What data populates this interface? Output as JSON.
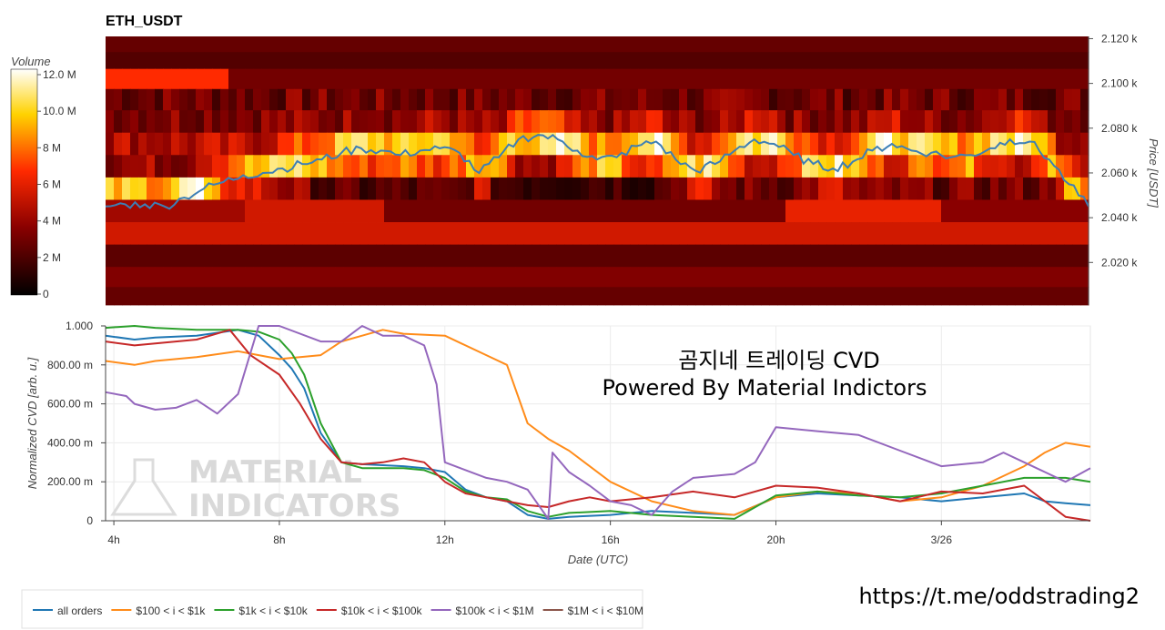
{
  "chart_data": [
    {
      "type": "heatmap",
      "title": "ETH_USDT",
      "colorbar": {
        "label": "Volume",
        "ticks": [
          "12.0 M",
          "10.0 M",
          "8 M",
          "6 M",
          "4 M",
          "2 M",
          "0"
        ],
        "range": [
          0,
          12000000
        ]
      },
      "ylabel": "Price [USDT]",
      "y_ticks": [
        "2.120 k",
        "2.100 k",
        "2.080 k",
        "2.060 k",
        "2.040 k",
        "2.020 k"
      ],
      "ylim": [
        2001,
        2121
      ],
      "price_bands": [
        2117,
        2111,
        2102,
        2093,
        2083,
        2073,
        2063,
        2053,
        2043,
        2033,
        2023,
        2013,
        2005
      ],
      "intensity_bands": [
        {
          "segments": [
            {
              "from": 0,
              "to": 1,
              "level": 0.22
            }
          ]
        },
        {
          "segments": [
            {
              "from": 0,
              "to": 1,
              "level": 0.18
            }
          ]
        },
        {
          "segments": [
            {
              "from": 0,
              "to": 0.125,
              "level": 0.55
            },
            {
              "from": 0.125,
              "to": 1,
              "level": 0.25
            }
          ]
        },
        {
          "segments": [
            {
              "from": 0,
              "to": 1,
              "level": 0.45
            }
          ]
        },
        {
          "segments": [
            {
              "from": 0,
              "to": 1,
              "level": 0.55
            }
          ]
        },
        {
          "segments": [
            {
              "from": 0,
              "to": 1,
              "level": 0.7
            }
          ]
        },
        {
          "segments": [
            {
              "from": 0,
              "to": 1,
              "level": 0.6
            }
          ]
        },
        {
          "segments": [
            {
              "from": 0,
              "to": 0.1,
              "level": 0.9
            },
            {
              "from": 0.1,
              "to": 0.565,
              "level": 0.3
            },
            {
              "from": 0.565,
              "to": 1,
              "level": 0.45
            }
          ]
        },
        {
          "segments": [
            {
              "from": 0,
              "to": 0.145,
              "level": 0.35
            },
            {
              "from": 0.145,
              "to": 0.285,
              "level": 0.45
            },
            {
              "from": 0.285,
              "to": 0.69,
              "level": 0.25
            },
            {
              "from": 0.69,
              "to": 0.85,
              "level": 0.5
            },
            {
              "from": 0.85,
              "to": 1,
              "level": 0.3
            }
          ]
        },
        {
          "segments": [
            {
              "from": 0,
              "to": 1,
              "level": 0.45
            }
          ]
        },
        {
          "segments": [
            {
              "from": 0,
              "to": 1,
              "level": 0.2
            }
          ]
        },
        {
          "segments": [
            {
              "from": 0,
              "to": 1,
              "level": 0.28
            }
          ]
        },
        {
          "segments": [
            {
              "from": 0,
              "to": 1,
              "level": 0.22
            }
          ]
        }
      ],
      "price_line": {
        "color": "#3d7fb5",
        "x": [
          0,
          0.02,
          0.04,
          0.06,
          0.08,
          0.1,
          0.12,
          0.14,
          0.16,
          0.18,
          0.2,
          0.22,
          0.24,
          0.26,
          0.28,
          0.3,
          0.32,
          0.34,
          0.36,
          0.38,
          0.4,
          0.42,
          0.44,
          0.46,
          0.48,
          0.5,
          0.52,
          0.54,
          0.56,
          0.58,
          0.6,
          0.62,
          0.64,
          0.66,
          0.68,
          0.7,
          0.72,
          0.74,
          0.76,
          0.78,
          0.8,
          0.82,
          0.84,
          0.86,
          0.88,
          0.9,
          0.92,
          0.94,
          0.96,
          0.98,
          1
        ],
        "y": [
          2045,
          2046,
          2046,
          2045,
          2049,
          2053,
          2056,
          2059,
          2060,
          2062,
          2064,
          2066,
          2069,
          2071,
          2070,
          2068,
          2070,
          2071,
          2069,
          2060,
          2067,
          2075,
          2077,
          2075,
          2070,
          2066,
          2067,
          2072,
          2074,
          2066,
          2061,
          2064,
          2070,
          2075,
          2073,
          2068,
          2064,
          2062,
          2065,
          2070,
          2073,
          2070,
          2069,
          2067,
          2068,
          2071,
          2075,
          2074,
          2066,
          2055,
          2045
        ]
      }
    },
    {
      "type": "line",
      "xlabel": "Date (UTC)",
      "ylabel": "Normalized CVD [arb. u.]",
      "x_ticks": [
        "4h",
        "8h",
        "12h",
        "16h",
        "20h",
        "3/26"
      ],
      "x_tick_hours": [
        4,
        8,
        12,
        16,
        20,
        24
      ],
      "xlim": [
        3.8,
        27.6
      ],
      "y_ticks": [
        "1.000",
        "800.00 m",
        "600.00 m",
        "400.00 m",
        "200.00 m",
        "0"
      ],
      "ylim": [
        0,
        1
      ],
      "series": [
        {
          "name": "all orders",
          "color": "#1f77b4",
          "x": [
            3.8,
            4.5,
            5,
            6,
            7,
            7.5,
            8,
            8.3,
            8.6,
            9,
            9.5,
            10,
            11,
            11.5,
            12,
            12.5,
            13,
            13.5,
            14,
            14.5,
            15,
            16,
            17,
            18,
            19,
            20,
            21,
            22,
            23,
            24,
            25,
            26,
            26.5,
            27,
            27.6
          ],
          "y": [
            0.95,
            0.93,
            0.94,
            0.95,
            0.98,
            0.95,
            0.85,
            0.78,
            0.68,
            0.45,
            0.3,
            0.29,
            0.28,
            0.27,
            0.25,
            0.16,
            0.12,
            0.1,
            0.03,
            0.01,
            0.02,
            0.03,
            0.05,
            0.04,
            0.03,
            0.12,
            0.14,
            0.13,
            0.12,
            0.1,
            0.12,
            0.14,
            0.1,
            0.09,
            0.08
          ]
        },
        {
          "name": "$100 < i < $1k",
          "color": "#ff8c1a",
          "x": [
            3.8,
            4.5,
            5,
            6,
            7,
            7.5,
            8,
            9,
            9.5,
            10,
            10.5,
            11,
            12,
            12.5,
            13,
            13.5,
            14,
            14.5,
            15,
            16,
            17,
            18,
            19,
            20,
            21,
            22,
            23,
            24,
            25,
            26,
            26.5,
            27,
            27.6
          ],
          "y": [
            0.82,
            0.8,
            0.82,
            0.84,
            0.87,
            0.85,
            0.83,
            0.85,
            0.92,
            0.95,
            0.98,
            0.96,
            0.95,
            0.9,
            0.85,
            0.8,
            0.5,
            0.42,
            0.36,
            0.2,
            0.1,
            0.05,
            0.03,
            0.12,
            0.15,
            0.14,
            0.1,
            0.12,
            0.18,
            0.28,
            0.35,
            0.4,
            0.38
          ]
        },
        {
          "name": "$1k < i < $10k",
          "color": "#2ca02c",
          "x": [
            3.8,
            4.5,
            5,
            6,
            7,
            7.5,
            8,
            8.3,
            8.6,
            9,
            9.5,
            10,
            11,
            11.5,
            12,
            12.5,
            13,
            13.5,
            14,
            14.5,
            15,
            16,
            17,
            18,
            19,
            20,
            21,
            22,
            23,
            24,
            25,
            26,
            27,
            27.6
          ],
          "y": [
            0.99,
            1.0,
            0.99,
            0.98,
            0.98,
            0.97,
            0.93,
            0.86,
            0.75,
            0.5,
            0.3,
            0.27,
            0.27,
            0.26,
            0.22,
            0.15,
            0.12,
            0.11,
            0.05,
            0.02,
            0.04,
            0.05,
            0.03,
            0.02,
            0.01,
            0.13,
            0.15,
            0.13,
            0.12,
            0.14,
            0.18,
            0.22,
            0.22,
            0.2
          ]
        },
        {
          "name": "$10k < i < $100k",
          "color": "#c62828",
          "x": [
            3.8,
            4.5,
            5,
            6,
            6.8,
            7.3,
            8,
            8.5,
            9,
            9.5,
            10,
            10.5,
            11,
            11.5,
            12,
            12.5,
            13,
            13.5,
            14,
            14.5,
            15,
            15.5,
            16,
            17,
            18,
            19,
            20,
            21,
            22,
            23,
            24,
            25,
            26,
            26.5,
            27,
            27.6
          ],
          "y": [
            0.92,
            0.9,
            0.91,
            0.93,
            0.98,
            0.85,
            0.75,
            0.6,
            0.42,
            0.3,
            0.29,
            0.3,
            0.32,
            0.3,
            0.2,
            0.14,
            0.12,
            0.1,
            0.08,
            0.07,
            0.1,
            0.12,
            0.1,
            0.12,
            0.15,
            0.12,
            0.18,
            0.17,
            0.14,
            0.1,
            0.15,
            0.14,
            0.18,
            0.1,
            0.02,
            0.0
          ]
        },
        {
          "name": "$100k < i < $1M",
          "color": "#9467bd",
          "x": [
            3.8,
            4.3,
            4.5,
            5,
            5.5,
            6,
            6.5,
            7,
            7.5,
            8,
            9,
            9.5,
            10,
            10.5,
            11,
            11.5,
            11.8,
            12,
            13,
            13.5,
            14,
            14.5,
            14.6,
            15,
            15.5,
            16,
            16.5,
            17,
            17.5,
            18,
            19,
            19.5,
            20,
            21,
            22,
            23,
            24,
            25,
            25.5,
            26,
            26.5,
            27,
            27.6
          ],
          "y": [
            0.66,
            0.64,
            0.6,
            0.57,
            0.58,
            0.62,
            0.55,
            0.65,
            1.0,
            1.0,
            0.92,
            0.92,
            1.0,
            0.95,
            0.95,
            0.9,
            0.7,
            0.3,
            0.22,
            0.2,
            0.16,
            0.01,
            0.35,
            0.25,
            0.18,
            0.1,
            0.08,
            0.03,
            0.15,
            0.22,
            0.24,
            0.3,
            0.48,
            0.46,
            0.44,
            0.36,
            0.28,
            0.3,
            0.35,
            0.3,
            0.25,
            0.2,
            0.27
          ]
        },
        {
          "name": "$1M < i < $10M",
          "color": "#8c564b",
          "x": [],
          "y": []
        }
      ]
    }
  ],
  "overlay": {
    "line1": "곰지네 트레이딩 CVD",
    "line2": "Powered By Material Indictors",
    "url": "https://t.me/oddstrading2"
  },
  "watermark": {
    "line1": "MATERIAL",
    "line2": "INDICATORS"
  },
  "legend": [
    {
      "label": "all orders",
      "color": "#1f77b4"
    },
    {
      "label": "$100 < i < $1k",
      "color": "#ff8c1a"
    },
    {
      "label": "$1k < i < $10k",
      "color": "#2ca02c"
    },
    {
      "label": "$10k < i < $100k",
      "color": "#c62828"
    },
    {
      "label": "$100k < i < $1M",
      "color": "#9467bd"
    },
    {
      "label": "$1M < i < $10M",
      "color": "#8c564b"
    }
  ]
}
